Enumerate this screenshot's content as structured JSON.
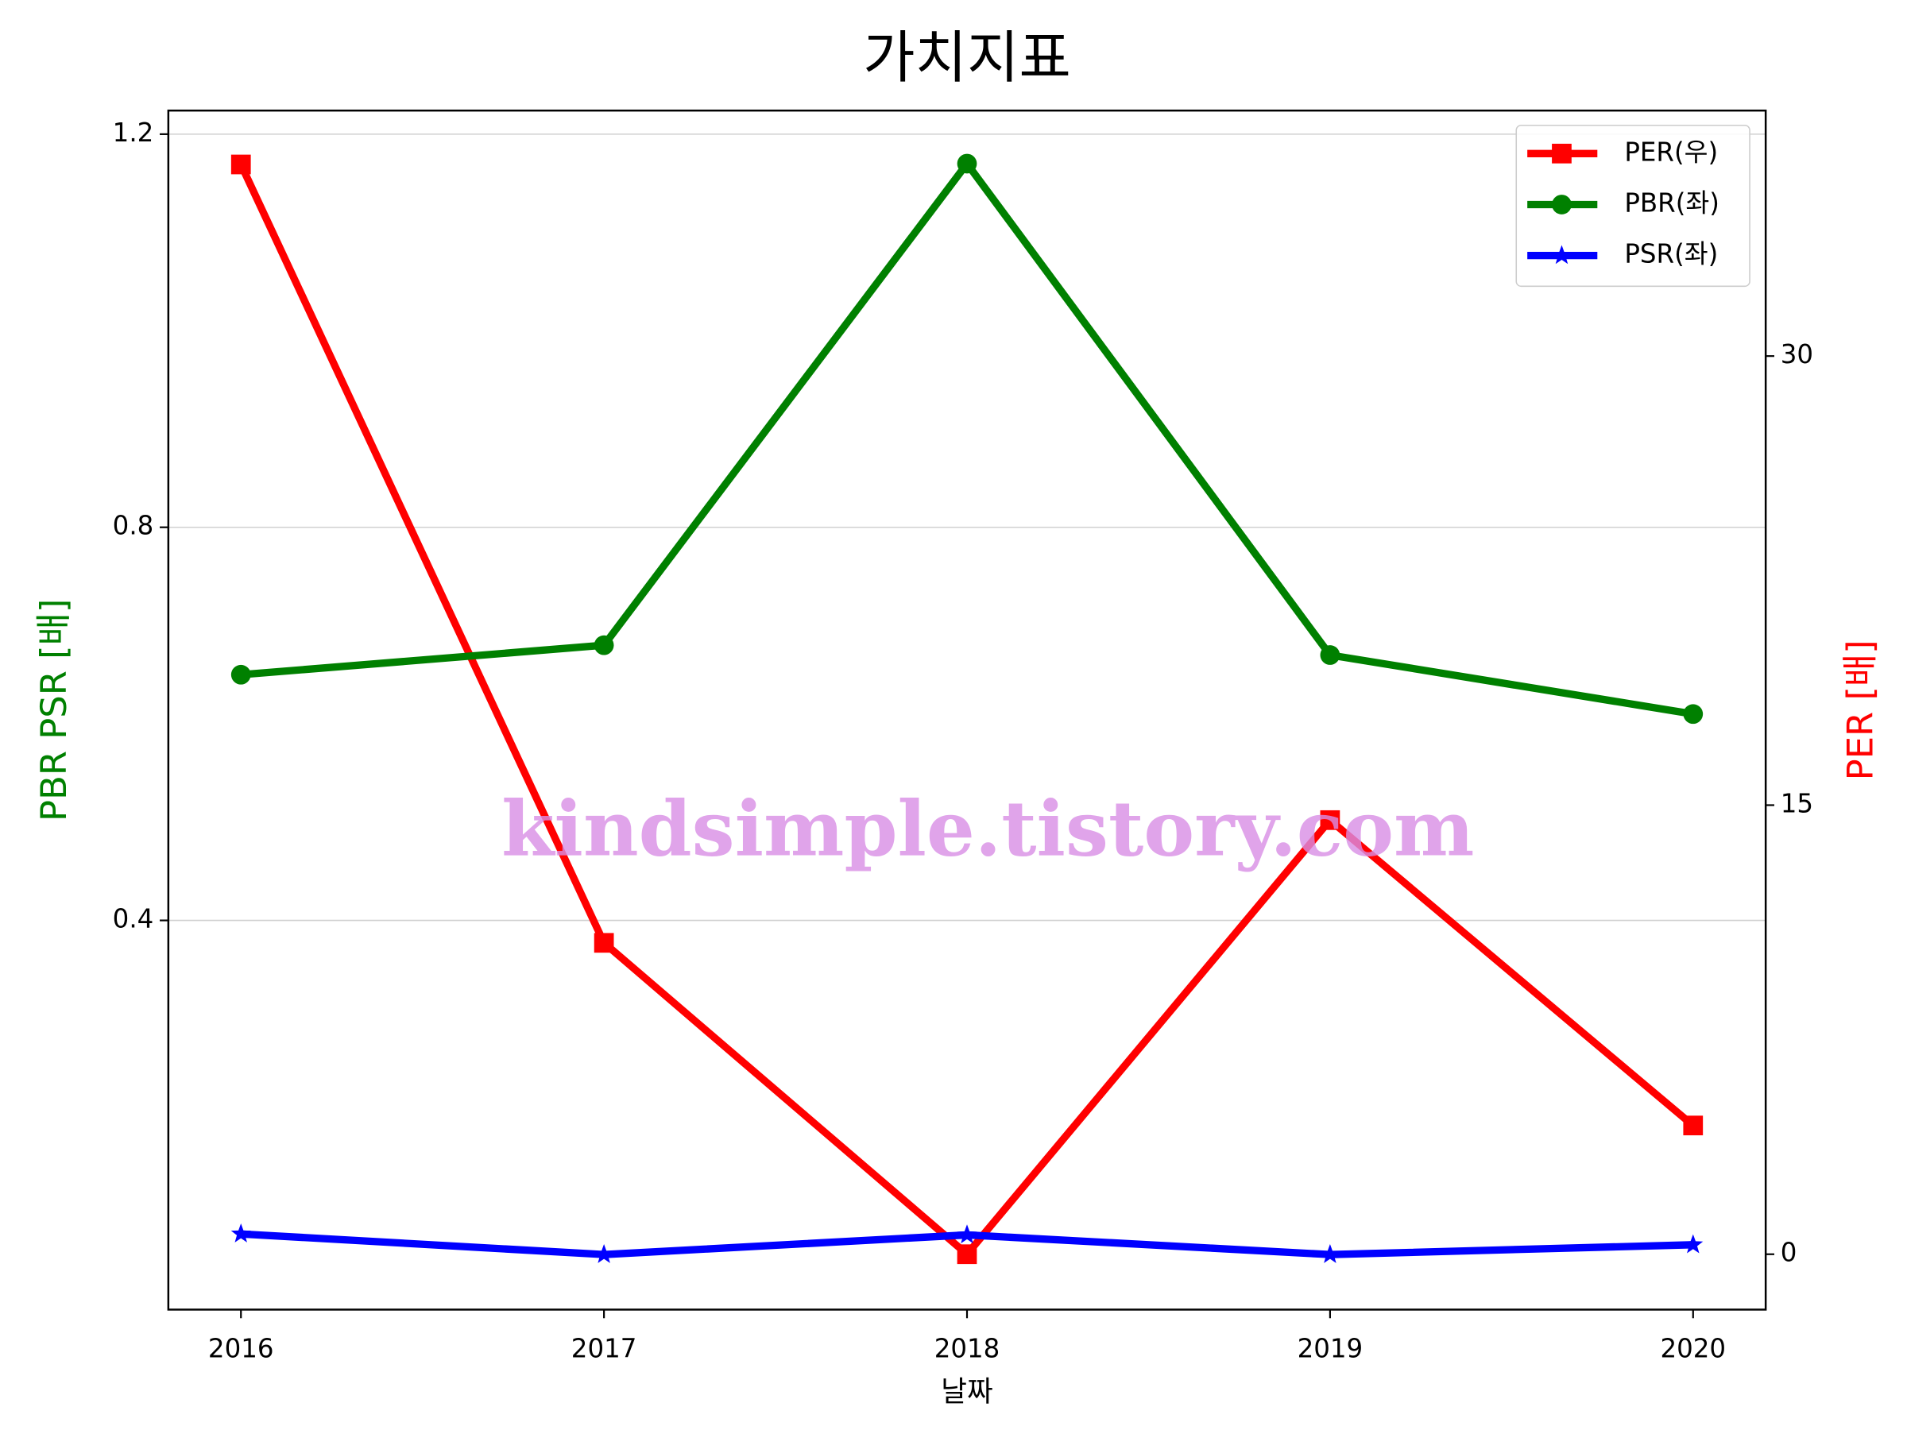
{
  "chart_data": {
    "type": "line",
    "title": "가치지표",
    "xlabel": "날짜",
    "ylabel": "PBR PSR [배]",
    "y2label": "PER [배]",
    "watermark": "kindsimple.tistory.com",
    "x": [
      2016,
      2017,
      2018,
      2019,
      2020
    ],
    "xlim": [
      2015.8,
      2020.2
    ],
    "xticks": [
      2016,
      2017,
      2018,
      2019,
      2020
    ],
    "ylim": [
      0.004,
      1.224
    ],
    "yticks": [
      0.4,
      0.8,
      1.2
    ],
    "y2lim": [
      -1.85,
      38.2
    ],
    "y2ticks": [
      0,
      15,
      30
    ],
    "grid": true,
    "legend": "upper right",
    "series": [
      {
        "name": "PER(우)",
        "color": "#ff0000",
        "marker": "square",
        "axis": "y2",
        "values": [
          36.4,
          10.4,
          0,
          14.5,
          4.3
        ]
      },
      {
        "name": "PBR(좌)",
        "color": "#008000",
        "marker": "circle",
        "values": [
          0.65,
          0.68,
          1.17,
          0.67,
          0.61
        ]
      },
      {
        "name": "PSR(좌)",
        "color": "#0000ff",
        "marker": "star",
        "values": [
          0.081,
          0.06,
          0.08,
          0.06,
          0.07
        ]
      }
    ]
  }
}
